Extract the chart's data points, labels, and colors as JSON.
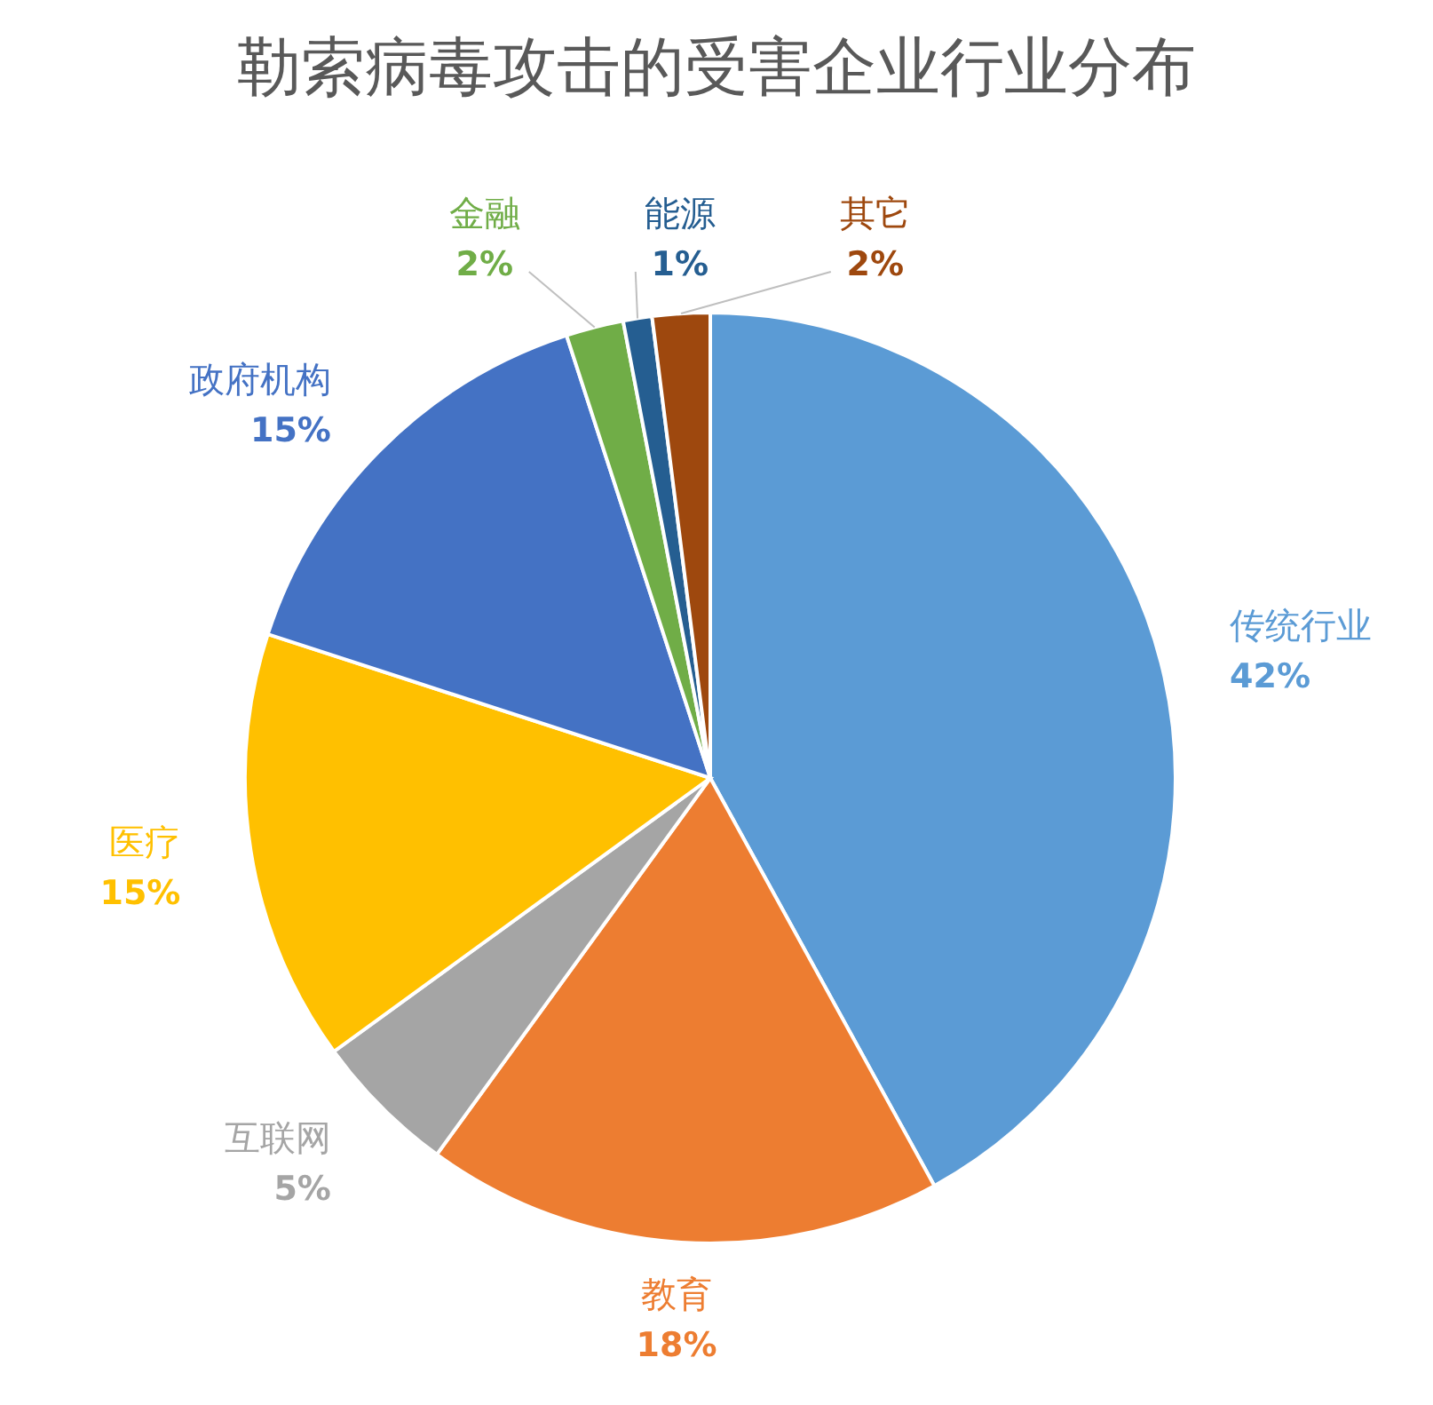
{
  "chart_data": {
    "type": "pie",
    "title": "勒索病毒攻击的受害企业行业分布",
    "categories": [
      "传统行业",
      "教育",
      "互联网",
      "医疗",
      "政府机构",
      "金融",
      "能源",
      "其它"
    ],
    "values": [
      42,
      18,
      5,
      15,
      15,
      2,
      1,
      2
    ],
    "colors": [
      "#5b9bd5",
      "#ed7d31",
      "#a5a5a5",
      "#ffc000",
      "#4472c4",
      "#70ad47",
      "#255e91",
      "#9e480e"
    ],
    "value_labels": [
      "42%",
      "18%",
      "5%",
      "15%",
      "15%",
      "2%",
      "1%",
      "2%"
    ],
    "legend": false
  }
}
